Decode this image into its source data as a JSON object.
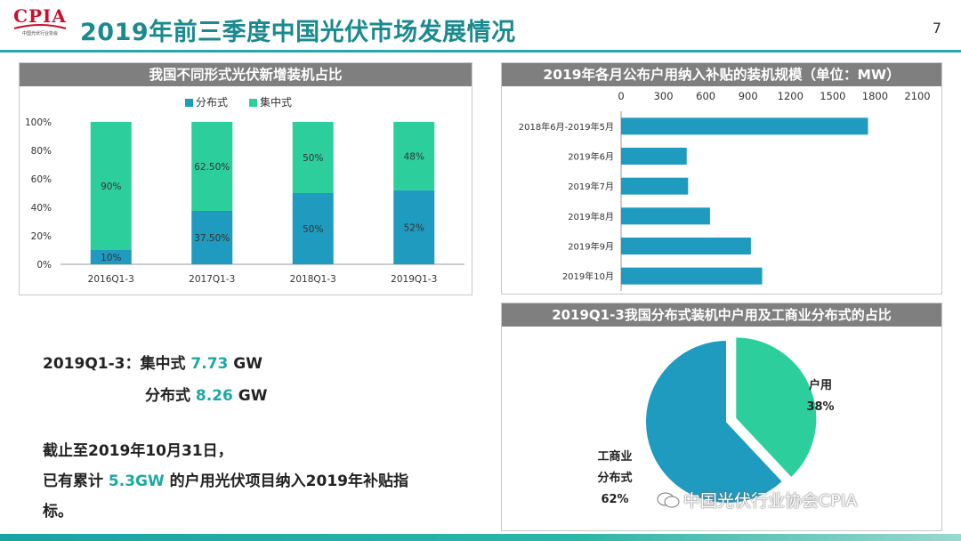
{
  "header": {
    "logo_text": "CPIA",
    "logo_subtext": "中国光伏行业协会",
    "title": "2019年前三季度中国光伏市场发展情况",
    "page_number": "7"
  },
  "colors": {
    "accent": "#1a8a8e",
    "distributed": "#1f9bbf",
    "centralized": "#2ccf9b",
    "panel_title_bg": "#7f7f7f"
  },
  "chart_data": [
    {
      "type": "bar",
      "stacked": true,
      "title": "我国不同形式光伏新增装机占比",
      "categories": [
        "2016Q1-3",
        "2017Q1-3",
        "2018Q1-3",
        "2019Q1-3"
      ],
      "series": [
        {
          "name": "分布式",
          "values": [
            10,
            37.5,
            50,
            52
          ],
          "labels": [
            "10%",
            "37.50%",
            "50%",
            "52%"
          ]
        },
        {
          "name": "集中式",
          "values": [
            90,
            62.5,
            50,
            48
          ],
          "labels": [
            "90%",
            "62.50%",
            "50%",
            "48%"
          ]
        }
      ],
      "ylim": [
        0,
        100
      ],
      "yticks": [
        "0%",
        "20%",
        "40%",
        "60%",
        "80%",
        "100%"
      ],
      "legend": "top"
    },
    {
      "type": "bar",
      "orientation": "horizontal",
      "title": "2019年各月公布户用纳入补贴的装机规模（单位：MW）",
      "categories": [
        "2018年6月-2019年5月",
        "2019年6月",
        "2019年7月",
        "2019年8月",
        "2019年9月",
        "2019年10月"
      ],
      "values": [
        1750,
        465,
        475,
        630,
        920,
        1000
      ],
      "xlim": [
        0,
        2100
      ],
      "xticks": [
        "0",
        "300",
        "600",
        "900",
        "1200",
        "1500",
        "1800",
        "2100"
      ],
      "xaxis_position": "top"
    },
    {
      "type": "pie",
      "title": "2019Q1-3我国分布式装机中户用及工商业分布式的占比",
      "slices": [
        {
          "label_line1": "户用",
          "label_line2": "",
          "pct_label": "38%",
          "value": 38
        },
        {
          "label_line1": "工商业",
          "label_line2": "分布式",
          "pct_label": "62%",
          "value": 62
        }
      ]
    }
  ],
  "summary": {
    "line1_prefix": "2019Q1-3：集中式 ",
    "line1_value": "7.73",
    "line1_unit": " GW",
    "line2_prefix": "分布式 ",
    "line2_value": "8.26",
    "line2_unit": " GW",
    "line3": "截止至2019年10月31日，",
    "line4_prefix": "已有累计 ",
    "line4_value": "5.3GW",
    "line4_suffix": " 的户用光伏项目纳入2019年补贴指",
    "line5": "标。"
  },
  "watermark": {
    "text": "中国光伏行业协会CPIA",
    "icon": "wechat-icon"
  }
}
